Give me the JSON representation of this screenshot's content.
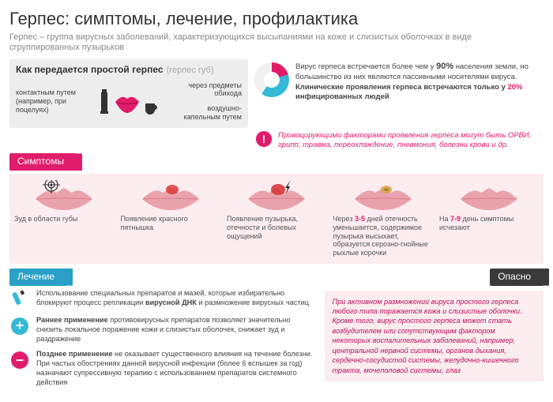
{
  "colors": {
    "magenta": "#e11c6a",
    "cyan": "#35b9d6",
    "grey_box": "#ededed",
    "pink_bg": "#fbecef",
    "text": "#333"
  },
  "title": "Герпес: симптомы, лечение, профилактика",
  "subtitle": "Герпес – группа вирусных заболеваний, характеризующихся высыпаниями на коже и слизистых оболочках в виде сгруппированных пузырьков",
  "transmission": {
    "heading": "Как передается простой герпес",
    "sub": "(герпес губ)",
    "col1": "контактным путем (например, при поцелуях)",
    "col2a": "через предметы обихода",
    "col2b": "воздушно-капельным путем"
  },
  "stats": {
    "text_before": "Вирус герпеса встречается более чем у ",
    "pct1": "90%",
    "text_mid1": " населения земли, но большинство из них являются пассивными носителями вируса. ",
    "bold_mid": "Клинические проявления герпеса встречаются только у ",
    "pct2": "20%",
    "text_after": " инфицированных людей",
    "pie": {
      "slices": [
        {
          "v": 20,
          "c": "#e11c6a"
        },
        {
          "v": 40,
          "c": "#35b9d6"
        },
        {
          "v": 40,
          "c": "#f0f0f0"
        }
      ]
    }
  },
  "alert": "Провоцирующими факторами проявления герпеса могут быть ОРВИ, грипп, травма, переохлаждение, пневмония, болезни крови и др.",
  "symptoms_label": "Симптомы",
  "symptoms": [
    {
      "text": "Зуд в области губы",
      "mark": "target"
    },
    {
      "text": "Появление красного пятнышка",
      "mark": "redspot"
    },
    {
      "text": "Появление пузырька, отечности и болевых ощущений",
      "mark": "bolt"
    },
    {
      "html": "Через <b class='pink'>3-5</b> дней отечность уменьшается, содержимое пузырька высыхает, образуется серозно-гнойные рыхлые корочки",
      "mark": "crust"
    },
    {
      "html": "На <b class='pink'>7-9</b> день симптомы исчезают",
      "mark": "none"
    }
  ],
  "treatment_label": "Лечение",
  "treatment": [
    {
      "icon": "tube",
      "html": "Использование специальных препаратов и мазей, которые избирательно блокируют процесс репликации <b>вирусной ДНК</b> и размножение вирусных частиц"
    },
    {
      "icon": "plus",
      "html": "<b>Раннее применение</b> противовирусных препаратов позволяет значительно снизить локальное поражение кожи и слизистых оболочек, снижает зуд и раздражение"
    },
    {
      "icon": "minus",
      "html": "<b>Позднее применение</b> не оказывает существенного влияния на течение болезни. При частых обострениях данной вирусной инфекции (более 6 вспышек за год) назначают супрессивную терапию с использованием препаратов системного действия"
    }
  ],
  "danger_label": "Опасно",
  "danger_text": "При активном размножении вируса простого герпеса любого типа поражается кожа и слизистые оболочки. Кроме того, вирус простого герпеса может стать возбудителем или сопутствующим фактором некоторых воспалительных заболеваний, например, центральной нервной системы, органов дыхания, сердечно-сосудистой системы, желудочно-кишечного тракта, мочеполовой системы, глаз"
}
